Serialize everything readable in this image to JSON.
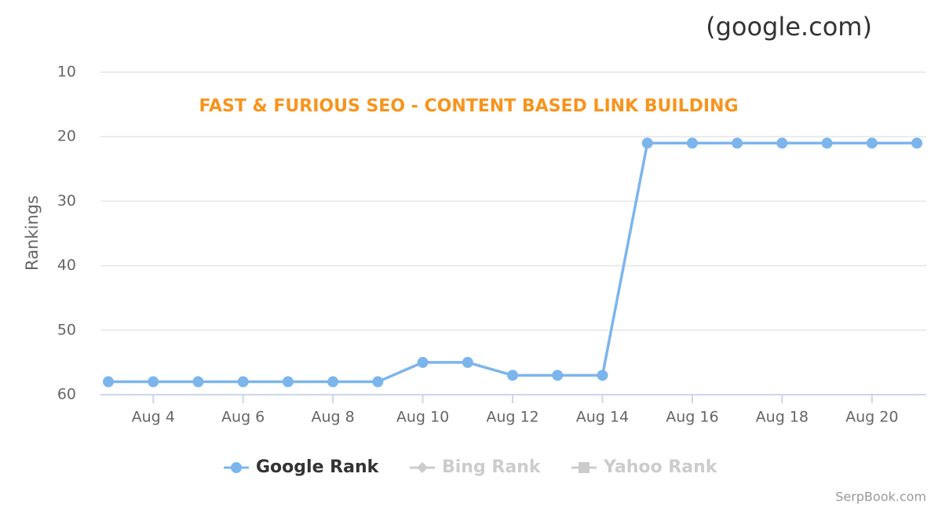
{
  "chart_data": {
    "type": "line",
    "title": "(google.com)",
    "subtitle": "FAST & FURIOUS SEO - CONTENT BASED LINK BUILDING",
    "y_label": "Rankings",
    "credit": "SerpBook.com",
    "categories": [
      null,
      "Aug 4",
      null,
      "Aug 6",
      null,
      "Aug 8",
      null,
      "Aug 10",
      null,
      "Aug 12",
      null,
      "Aug 14",
      null,
      "Aug 16",
      null,
      "Aug 18",
      null,
      "Aug 20",
      null
    ],
    "series": [
      {
        "name": "Google Rank",
        "color": "#7cb5ec",
        "values": [
          58,
          58,
          58,
          58,
          58,
          58,
          58,
          55,
          55,
          57,
          57,
          57,
          21,
          21,
          21,
          21,
          21,
          21,
          21
        ]
      },
      {
        "name": "Bing Rank",
        "color": "#cccccc",
        "hidden": true
      },
      {
        "name": "Yahoo Rank",
        "color": "#cccccc",
        "hidden": true
      }
    ],
    "ylim": [
      10,
      60
    ],
    "yticks": [
      10,
      20,
      30,
      40,
      50,
      60
    ],
    "y_reversed": true,
    "grid": true
  }
}
